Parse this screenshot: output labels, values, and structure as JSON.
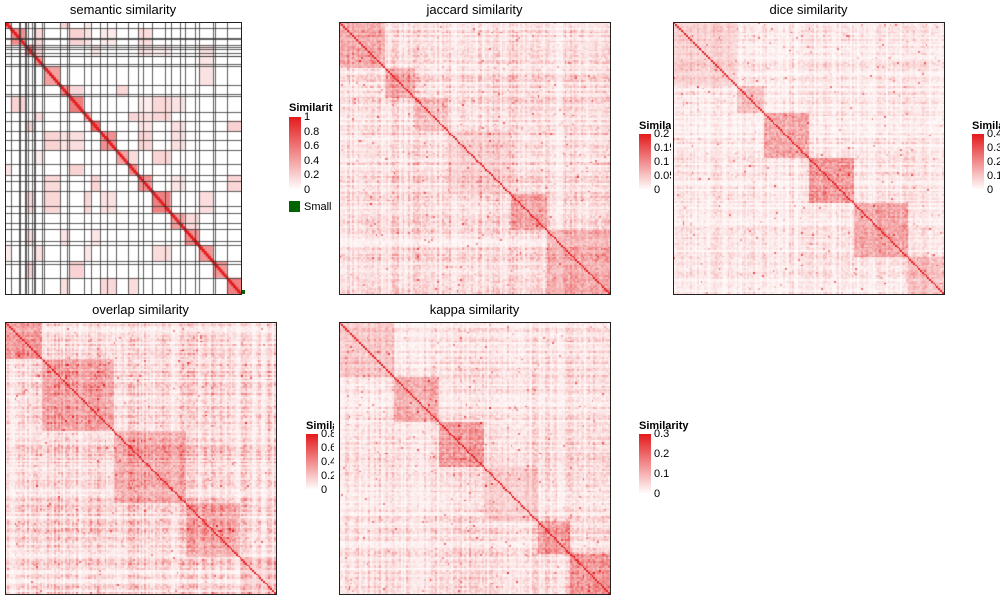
{
  "chart_data": [
    {
      "type": "heatmap",
      "title": "semantic similarity",
      "legend_title": "Similarity",
      "legend_ticks": [
        "1",
        "0.8",
        "0.6",
        "0.4",
        "0.2",
        "0"
      ],
      "extra_legend_label": "Small clusters",
      "color_low": "#ffffff",
      "color_high": "#e31a1c",
      "pattern": "blocks-with-grid"
    },
    {
      "type": "heatmap",
      "title": "jaccard similarity",
      "legend_title": "Similarity",
      "legend_ticks": [
        "0.2",
        "0.15",
        "0.1",
        "0.05",
        "0"
      ],
      "color_low": "#ffffff",
      "color_high": "#e31a1c",
      "pattern": "dense"
    },
    {
      "type": "heatmap",
      "title": "dice similarity",
      "legend_title": "Similarity",
      "legend_ticks": [
        "0.4",
        "0.3",
        "0.2",
        "0.1",
        "0"
      ],
      "color_low": "#ffffff",
      "color_high": "#e31a1c",
      "pattern": "dense"
    },
    {
      "type": "heatmap",
      "title": "overlap similarity",
      "legend_title": "Similarity",
      "legend_ticks": [
        "0.8",
        "0.6",
        "0.4",
        "0.2",
        "0"
      ],
      "color_low": "#ffffff",
      "color_high": "#e31a1c",
      "pattern": "dense"
    },
    {
      "type": "heatmap",
      "title": "kappa similarity",
      "legend_title": "Similarity",
      "legend_ticks": [
        "0.3",
        "0.2",
        "0.1",
        "0"
      ],
      "color_low": "#ffffff",
      "color_high": "#e31a1c",
      "pattern": "dense"
    }
  ]
}
